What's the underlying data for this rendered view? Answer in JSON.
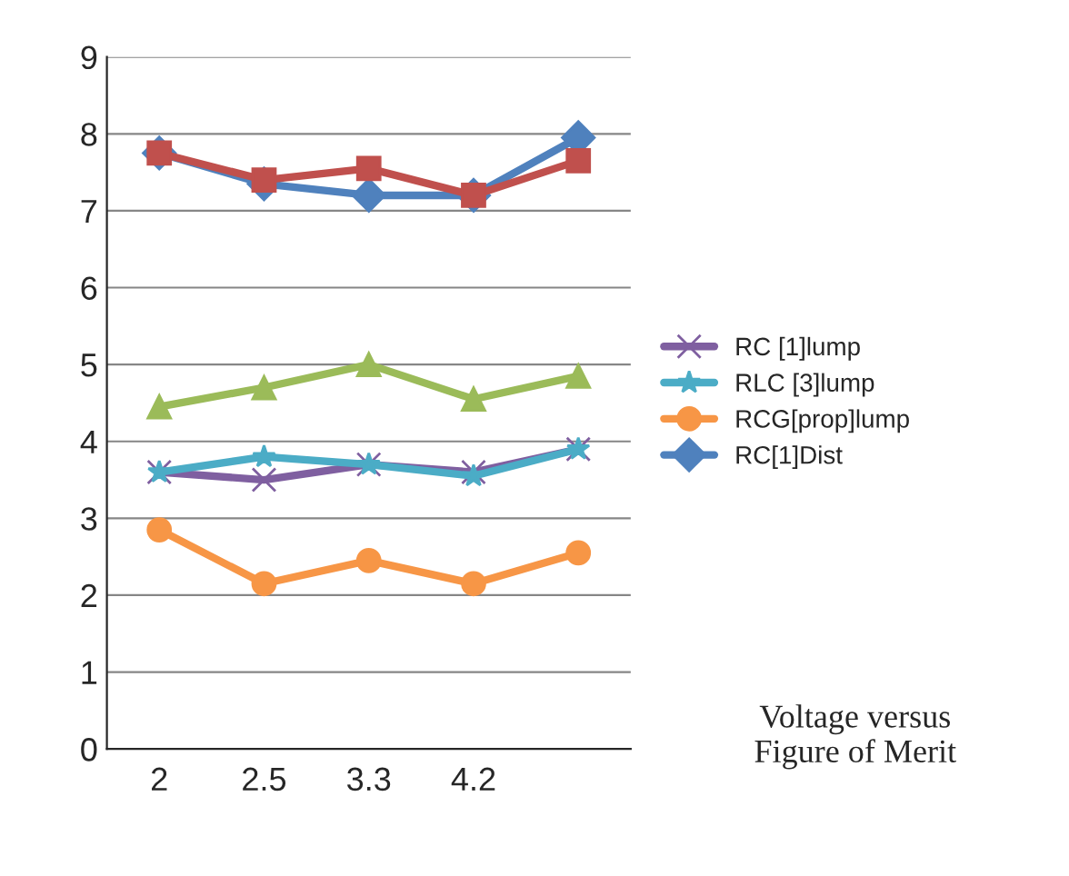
{
  "chart_data": {
    "type": "line",
    "categories": [
      "2",
      "2.5",
      "3.3",
      "4.2",
      null
    ],
    "series": [
      {
        "name": "RC [1]lump",
        "color": "#7f5fa0",
        "marker": "cross",
        "values": [
          3.6,
          3.5,
          3.7,
          3.6,
          3.9
        ]
      },
      {
        "name": "RLC [3]lump",
        "color": "#4bacc6",
        "marker": "star",
        "values": [
          3.6,
          3.8,
          3.7,
          3.55,
          3.9
        ]
      },
      {
        "name": "RCG[prop]lump",
        "color": "#f79646",
        "marker": "circle",
        "values": [
          2.85,
          2.15,
          2.45,
          2.15,
          2.55
        ]
      },
      {
        "name": "RC[1]Dist",
        "color": "#4f81bd",
        "marker": "diamond",
        "values": [
          7.75,
          7.35,
          7.2,
          7.2,
          7.95
        ]
      },
      {
        "color": "#c0504d",
        "marker": "square",
        "values": [
          7.75,
          7.4,
          7.55,
          7.2,
          7.65
        ]
      },
      {
        "color": "#9bbb59",
        "marker": "triangle",
        "values": [
          4.45,
          4.7,
          5.0,
          4.55,
          4.85
        ]
      }
    ],
    "ylim": [
      0,
      9
    ],
    "yticks": [
      0,
      1,
      2,
      3,
      4,
      5,
      6,
      7,
      8,
      9
    ],
    "grid": "y",
    "legend": "right",
    "annotations": [
      "Voltage versus\nFigure of Merit"
    ]
  }
}
